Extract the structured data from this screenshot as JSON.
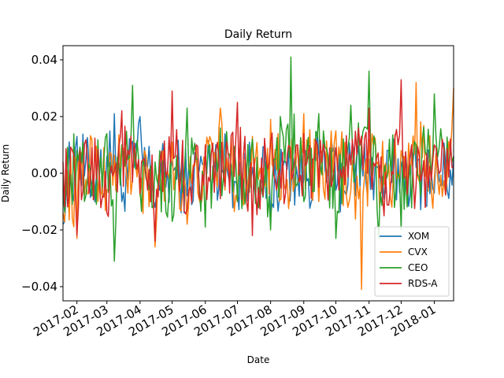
{
  "chart_data": {
    "type": "line",
    "title": "Daily Return",
    "xlabel": "Date",
    "ylabel": "Daily Return",
    "x_range": [
      "2017-01-19",
      "2018-01-19"
    ],
    "ylim": [
      -0.045,
      0.045
    ],
    "y_ticks": [
      -0.04,
      -0.02,
      0.0,
      0.02,
      0.04
    ],
    "y_tick_labels": [
      "−0.04",
      "−0.02",
      "0.00",
      "0.02",
      "0.04"
    ],
    "x_ticks": [
      "2017-02-01",
      "2017-03-01",
      "2017-04-01",
      "2017-05-01",
      "2017-06-01",
      "2017-07-01",
      "2017-08-01",
      "2017-09-01",
      "2017-10-01",
      "2017-11-01",
      "2017-12-01",
      "2018-01-01"
    ],
    "x_tick_labels": [
      "2017-02",
      "2017-03",
      "2017-04",
      "2017-05",
      "2017-06",
      "2017-07",
      "2017-08",
      "2017-09",
      "2017-10",
      "2017-11",
      "2017-12",
      "2018-01"
    ],
    "grid": false,
    "legend_position": "lower-right",
    "series": [
      {
        "name": "XOM",
        "color": "#1f77b4",
        "x": [
          "2017-01-19",
          "2017-02-01",
          "2017-02-15",
          "2017-03-01",
          "2017-03-08",
          "2017-03-15",
          "2017-04-01",
          "2017-04-15",
          "2017-05-01",
          "2017-05-15",
          "2017-06-01",
          "2017-06-15",
          "2017-07-01",
          "2017-07-15",
          "2017-08-01",
          "2017-08-15",
          "2017-09-01",
          "2017-09-15",
          "2017-10-01",
          "2017-10-15",
          "2017-11-01",
          "2017-11-15",
          "2017-12-01",
          "2017-12-15",
          "2018-01-01",
          "2018-01-19"
        ],
        "values": [
          -0.018,
          0.013,
          -0.004,
          0.006,
          0.021,
          -0.01,
          0.02,
          -0.012,
          0.003,
          -0.008,
          0.006,
          0.013,
          -0.005,
          0.002,
          -0.015,
          0.004,
          -0.002,
          0.007,
          -0.006,
          0.003,
          0.005,
          -0.009,
          0.004,
          0.002,
          -0.007,
          0.006
        ]
      },
      {
        "name": "CVX",
        "color": "#ff7f0e",
        "x": [
          "2017-01-19",
          "2017-02-01",
          "2017-02-15",
          "2017-03-01",
          "2017-03-15",
          "2017-04-01",
          "2017-04-15",
          "2017-05-01",
          "2017-05-15",
          "2017-06-01",
          "2017-06-15",
          "2017-07-01",
          "2017-07-15",
          "2017-08-01",
          "2017-08-15",
          "2017-09-01",
          "2017-09-15",
          "2017-10-01",
          "2017-10-15",
          "2017-10-25",
          "2017-11-01",
          "2017-11-15",
          "2017-12-01",
          "2017-12-15",
          "2018-01-01",
          "2018-01-19"
        ],
        "values": [
          -0.014,
          -0.023,
          0.012,
          -0.006,
          0.01,
          -0.008,
          -0.026,
          0.011,
          -0.018,
          0.004,
          0.023,
          -0.01,
          0.013,
          0.019,
          -0.006,
          0.021,
          -0.01,
          0.015,
          -0.006,
          -0.041,
          0.012,
          -0.004,
          0.008,
          0.032,
          -0.002,
          0.03
        ]
      },
      {
        "name": "CEO",
        "color": "#2ca02c",
        "x": [
          "2017-01-19",
          "2017-02-01",
          "2017-02-15",
          "2017-03-01",
          "2017-03-08",
          "2017-03-15",
          "2017-03-25",
          "2017-04-01",
          "2017-04-15",
          "2017-05-01",
          "2017-05-15",
          "2017-06-01",
          "2017-06-15",
          "2017-07-01",
          "2017-07-15",
          "2017-08-01",
          "2017-08-10",
          "2017-08-20",
          "2017-09-01",
          "2017-09-15",
          "2017-10-01",
          "2017-10-15",
          "2017-11-01",
          "2017-11-10",
          "2017-11-20",
          "2017-12-01",
          "2017-12-15",
          "2018-01-01",
          "2018-01-19"
        ],
        "values": [
          -0.006,
          0.008,
          -0.008,
          0.014,
          -0.031,
          0.01,
          0.031,
          -0.006,
          0.004,
          -0.017,
          0.023,
          -0.019,
          0.016,
          -0.01,
          0.012,
          -0.02,
          0.02,
          0.041,
          -0.01,
          0.021,
          -0.023,
          0.024,
          0.036,
          -0.023,
          0.012,
          -0.02,
          0.01,
          0.028,
          0.006
        ]
      },
      {
        "name": "RDS-A",
        "color": "#d62728",
        "x": [
          "2017-01-19",
          "2017-02-01",
          "2017-02-15",
          "2017-03-01",
          "2017-03-15",
          "2017-04-01",
          "2017-04-15",
          "2017-05-01",
          "2017-05-15",
          "2017-06-01",
          "2017-06-15",
          "2017-07-01",
          "2017-07-15",
          "2017-08-01",
          "2017-08-15",
          "2017-09-01",
          "2017-09-15",
          "2017-10-01",
          "2017-10-15",
          "2017-11-01",
          "2017-11-15",
          "2017-12-01",
          "2017-12-15",
          "2018-01-01",
          "2018-01-19"
        ],
        "values": [
          0.004,
          -0.022,
          0.009,
          -0.014,
          0.022,
          -0.007,
          -0.024,
          0.029,
          -0.013,
          0.01,
          -0.009,
          0.025,
          -0.022,
          0.011,
          -0.007,
          0.014,
          -0.005,
          0.009,
          0.003,
          0.023,
          -0.015,
          0.033,
          -0.004,
          0.01,
          0.002
        ]
      }
    ]
  }
}
